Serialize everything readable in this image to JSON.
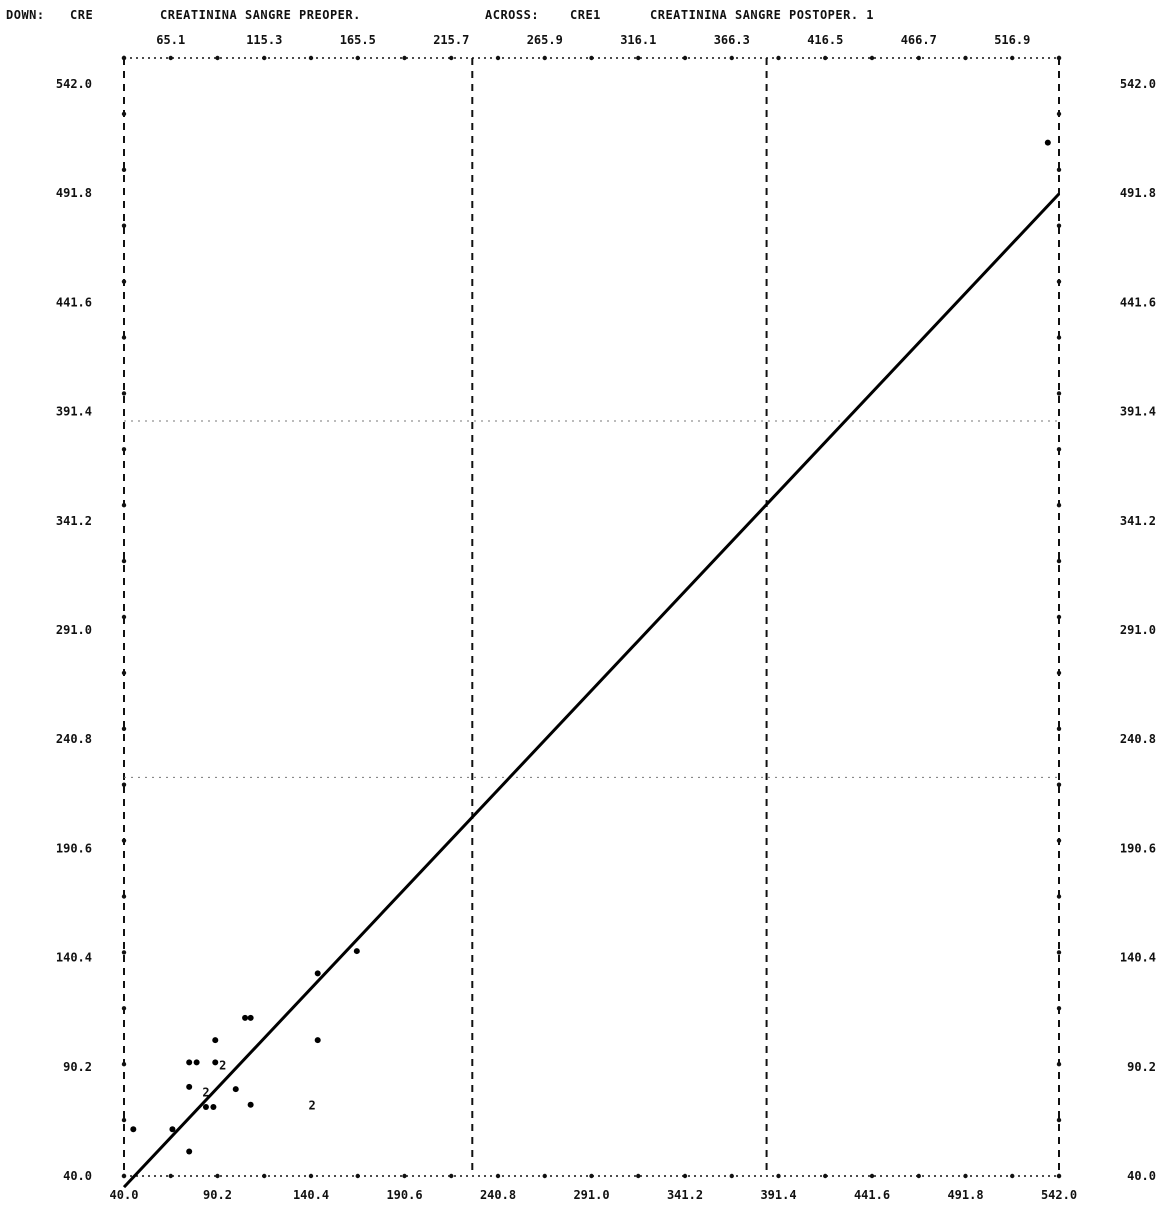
{
  "header": {
    "down_label": "DOWN:",
    "down_var": "CRE",
    "down_desc": "CREATININA SANGRE PREOPER.",
    "across_label": "ACROSS:",
    "across_var": "CRE1",
    "across_desc": "CREATININA SANGRE POSTOPER. 1"
  },
  "chart_data": {
    "type": "scatter",
    "title": "",
    "xlabel": "CREATININA SANGRE PREOPER.",
    "ylabel": "CREATININA SANGRE POSTOPER. 1",
    "xlim": [
      40.0,
      542.0
    ],
    "ylim": [
      40.0,
      542.0
    ],
    "top_ticks": [
      "65.1",
      "115.3",
      "165.5",
      "215.7",
      "265.9",
      "316.1",
      "366.3",
      "416.5",
      "466.7",
      "516.9"
    ],
    "bottom_ticks": [
      "40.0",
      "90.2",
      "140.4",
      "190.6",
      "240.8",
      "291.0",
      "341.2",
      "391.4",
      "441.6",
      "491.8",
      "542.0"
    ],
    "left_ticks": [
      "542.0",
      "491.8",
      "441.6",
      "391.4",
      "341.2",
      "291.0",
      "240.8",
      "190.6",
      "140.4",
      "90.2",
      "40.0"
    ],
    "right_ticks": [
      "542.0",
      "491.8",
      "441.6",
      "391.4",
      "341.2",
      "291.0",
      "240.8",
      "190.6",
      "140.4",
      "90.2",
      "40.0"
    ],
    "v_reference_lines": [
      227.0,
      385.0
    ],
    "h_reference_lines": [
      379.0,
      219.0
    ],
    "regression_line": {
      "x": [
        40.0,
        542.0
      ],
      "y": [
        35.0,
        481.0
      ]
    },
    "points": [
      {
        "x": 45,
        "y": 61
      },
      {
        "x": 66,
        "y": 61
      },
      {
        "x": 75,
        "y": 51
      },
      {
        "x": 75,
        "y": 80
      },
      {
        "x": 75,
        "y": 91
      },
      {
        "x": 79,
        "y": 91
      },
      {
        "x": 84,
        "y": 78,
        "label": "2"
      },
      {
        "x": 84,
        "y": 71
      },
      {
        "x": 88,
        "y": 71
      },
      {
        "x": 89,
        "y": 91
      },
      {
        "x": 89,
        "y": 101
      },
      {
        "x": 93,
        "y": 90,
        "label": "2"
      },
      {
        "x": 100,
        "y": 79
      },
      {
        "x": 105,
        "y": 111
      },
      {
        "x": 108,
        "y": 111
      },
      {
        "x": 108,
        "y": 72
      },
      {
        "x": 141,
        "y": 72,
        "label": "2"
      },
      {
        "x": 144,
        "y": 131
      },
      {
        "x": 144,
        "y": 101
      },
      {
        "x": 165,
        "y": 141
      },
      {
        "x": 536,
        "y": 504
      }
    ]
  }
}
